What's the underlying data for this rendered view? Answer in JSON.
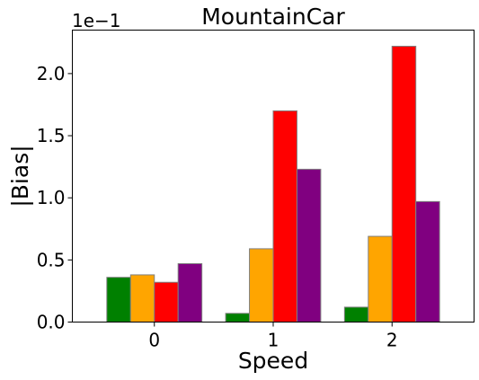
{
  "chart_data": {
    "type": "bar",
    "title": "MountainCar",
    "xlabel": "Speed",
    "ylabel": "|Bias|",
    "offset_text": "1e−1",
    "categories": [
      "0",
      "1",
      "2"
    ],
    "series": [
      {
        "color": "#008000",
        "values": [
          0.36,
          0.07,
          0.12
        ]
      },
      {
        "color": "#ffa500",
        "values": [
          0.38,
          0.59,
          0.69
        ]
      },
      {
        "color": "#ff0000",
        "values": [
          0.32,
          1.7,
          2.22
        ]
      },
      {
        "color": "#800080",
        "values": [
          0.47,
          1.23,
          0.97
        ]
      }
    ],
    "ylim": [
      0,
      2.35
    ],
    "yticks": [
      0.0,
      0.5,
      1.0,
      1.5,
      2.0
    ],
    "ytick_labels": [
      "0.0",
      "0.5",
      "1.0",
      "1.5",
      "2.0"
    ],
    "grid": false,
    "legend": "none"
  }
}
